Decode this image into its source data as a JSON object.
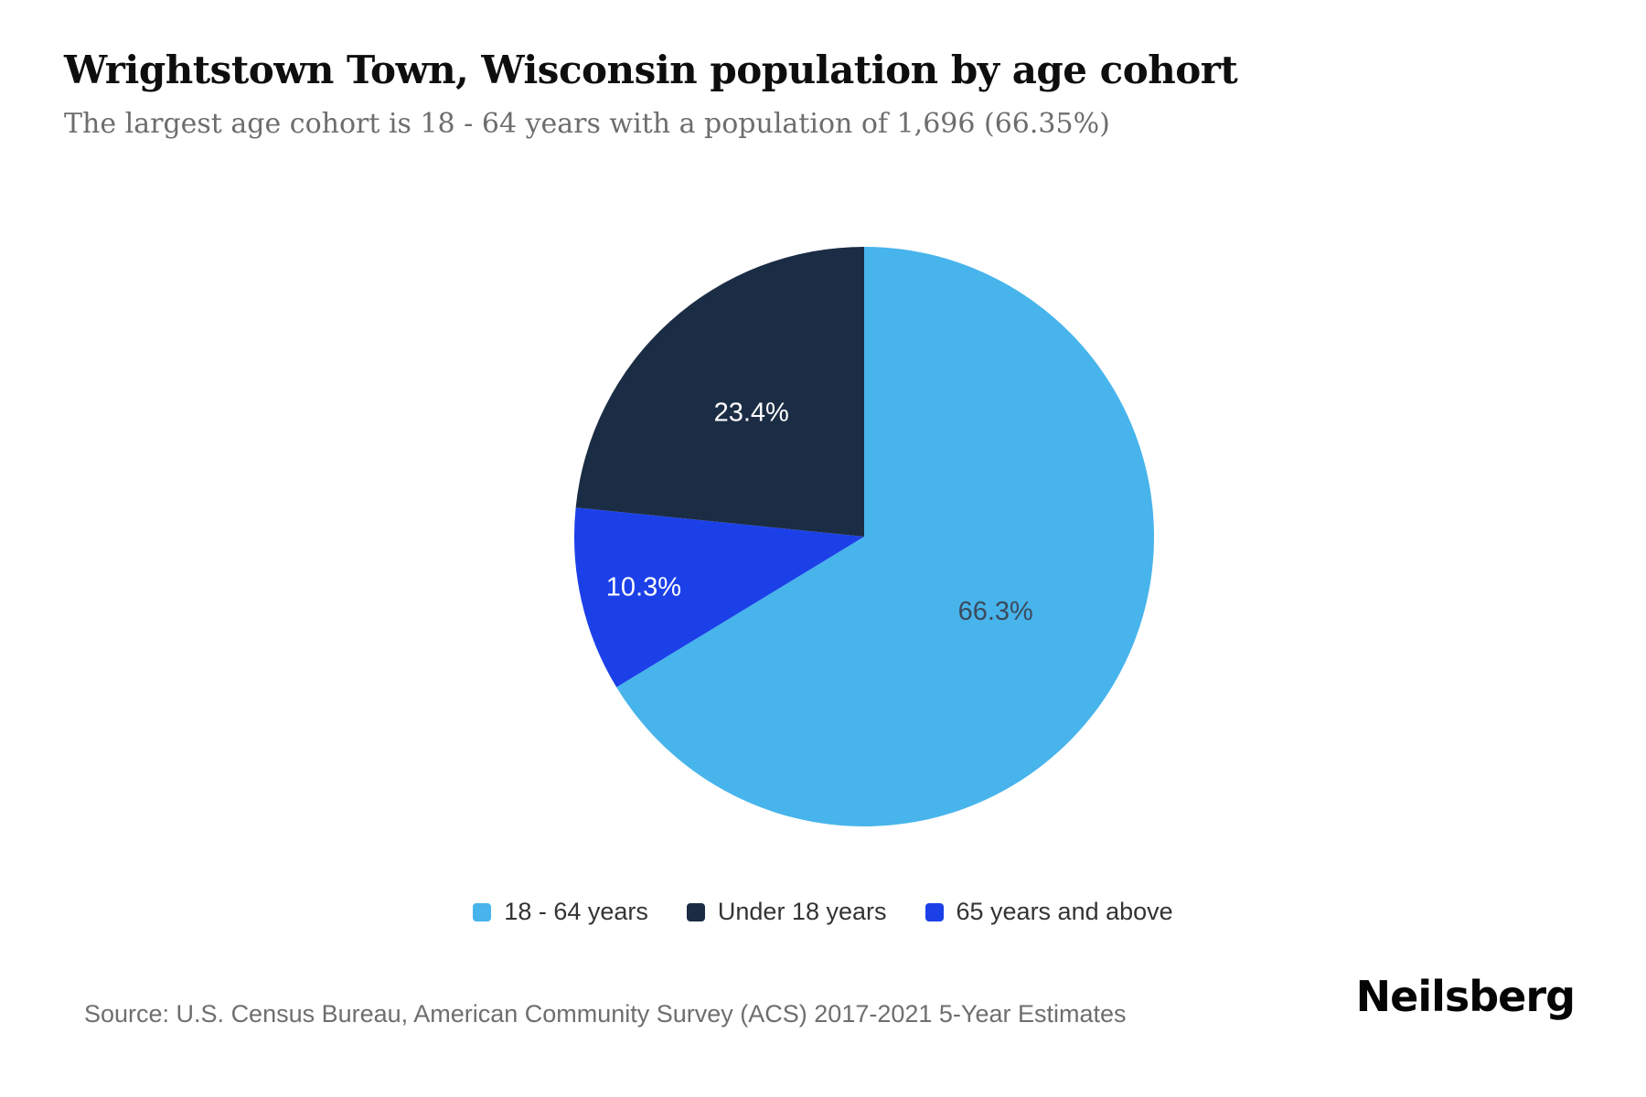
{
  "page": {
    "title": "Wrightstown Town, Wisconsin population by age cohort",
    "subtitle": "The largest age cohort is 18 - 64 years with a population of 1,696 (66.35%)",
    "source": "Source: U.S. Census Bureau, American Community Survey (ACS) 2017-2021 5-Year Estimates",
    "brand": "Neilsberg"
  },
  "chart_data": {
    "type": "pie",
    "title": "Wrightstown Town, Wisconsin population by age cohort",
    "subtitle": "The largest age cohort is 18 - 64 years with a population of 1,696 (66.35%)",
    "slices": [
      {
        "id": "18-64-years",
        "label": "18 - 64 years",
        "value_pct": 66.3,
        "display": "66.3%",
        "color": "#47B4EC",
        "label_color": "#3C4A5C"
      },
      {
        "id": "under-18-years",
        "label": "Under 18 years",
        "value_pct": 23.4,
        "display": "23.4%",
        "color": "#1B2D45",
        "label_color": "#FFFFFF"
      },
      {
        "id": "65-years-and-above",
        "label": "65 years and above",
        "value_pct": 10.3,
        "display": "10.3%",
        "color": "#1C40E8",
        "label_color": "#FFFFFF"
      }
    ],
    "legend_position": "bottom",
    "background": "#FFFFFF",
    "layout": {
      "start_angle_deg": 0,
      "clockwise_slice_indices": [
        0,
        2,
        1
      ]
    }
  }
}
